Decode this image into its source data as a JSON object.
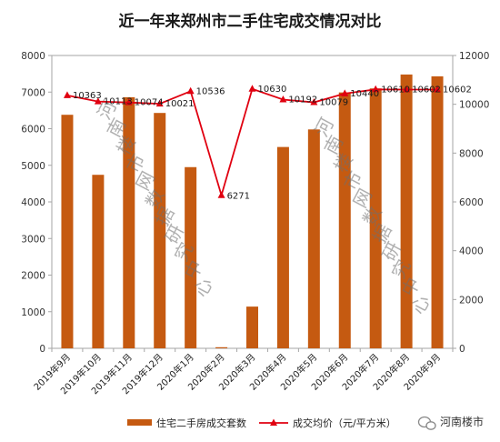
{
  "chart_data": {
    "type": "bar",
    "title": "近一年来郑州市二手住宅成交情况对比",
    "categories": [
      "2019年9月",
      "2019年10月",
      "2019年11月",
      "2019年12月",
      "2020年1月",
      "2020年2月",
      "2020年3月",
      "2020年4月",
      "2020年5月",
      "2020年6月",
      "2020年7月",
      "2020年8月",
      "2020年9月"
    ],
    "series": [
      {
        "name": "住宅二手房成交套数",
        "chart": "bar",
        "axis": "left",
        "color": "#c55a11",
        "values": [
          6380,
          4740,
          6860,
          6430,
          4950,
          30,
          1140,
          5500,
          5980,
          6990,
          7100,
          7480,
          7430
        ]
      },
      {
        "name": "成交均价（元/平方米）",
        "chart": "line",
        "axis": "right",
        "color": "#e00010",
        "values": [
          10363,
          10113,
          10074,
          10021,
          10536,
          6271,
          10630,
          10192,
          10079,
          10440,
          10610,
          10602,
          10602
        ]
      }
    ],
    "y_left": {
      "min": 0,
      "max": 8000,
      "ticks": [
        0,
        1000,
        2000,
        3000,
        4000,
        5000,
        6000,
        7000,
        8000
      ]
    },
    "y_right": {
      "min": 0,
      "max": 12000,
      "ticks": [
        0,
        2000,
        4000,
        6000,
        8000,
        10000,
        12000
      ]
    },
    "grid": false,
    "legend_position": "bottom"
  },
  "watermark": {
    "text": "河南楼市网数据研究中心"
  },
  "brand": {
    "icon": "wechat-icon",
    "label": "河南楼市"
  }
}
